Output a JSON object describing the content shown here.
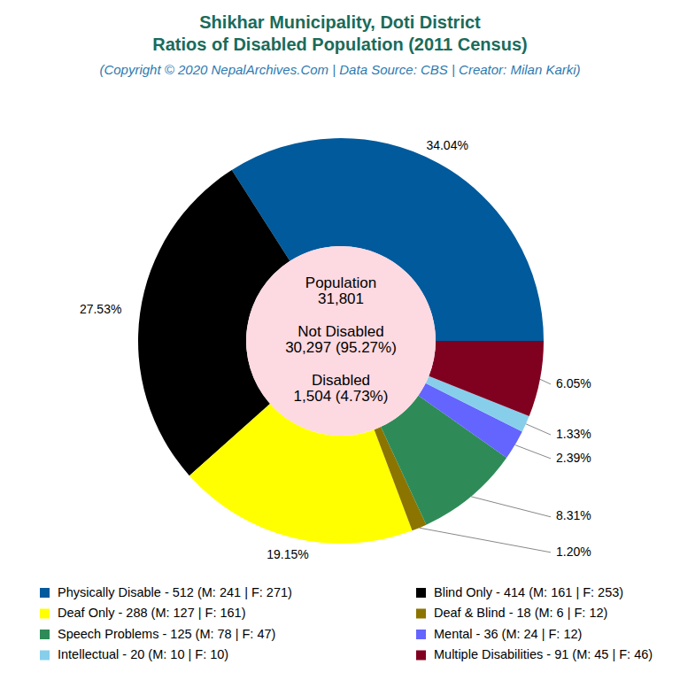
{
  "chart_data": {
    "type": "pie",
    "title": [
      "Shikhar Municipality, Doti District",
      "Ratios of Disabled Population (2011 Census)"
    ],
    "subtitle": "(Copyright © 2020 NepalArchives.Com | Data Source: CBS | Creator: Milan Karki)",
    "annotations": [
      "Population",
      "31,801",
      "Not Disabled",
      "30,297 (95.27%)",
      "Disabled",
      "1,504 (4.73%)"
    ],
    "categories": [
      "Physically Disable - 512 (M: 241 | F: 271)",
      "Blind Only - 414 (M: 161 | F: 253)",
      "Deaf Only - 288 (M: 127 | F: 161)",
      "Deaf & Blind - 18 (M: 6 | F: 12)",
      "Speech Problems - 125 (M: 78 | F: 47)",
      "Mental - 36 (M: 24 | F: 12)",
      "Intellectual - 20 (M: 10 | F: 10)",
      "Multiple Disabilities - 91 (M: 45 | F: 46)"
    ],
    "values": [
      34.04,
      27.53,
      19.15,
      1.2,
      8.31,
      2.39,
      1.33,
      6.05
    ],
    "value_labels": [
      "34.04%",
      "27.53%",
      "19.15%",
      "1.20%",
      "8.31%",
      "2.39%",
      "1.33%",
      "6.05%"
    ],
    "colors": [
      "#005a9c",
      "#000000",
      "#ffff00",
      "#8b7500",
      "#2e8b57",
      "#6464ff",
      "#87ceeb",
      "#800020"
    ],
    "data_labels": true,
    "legend": "bottom"
  }
}
